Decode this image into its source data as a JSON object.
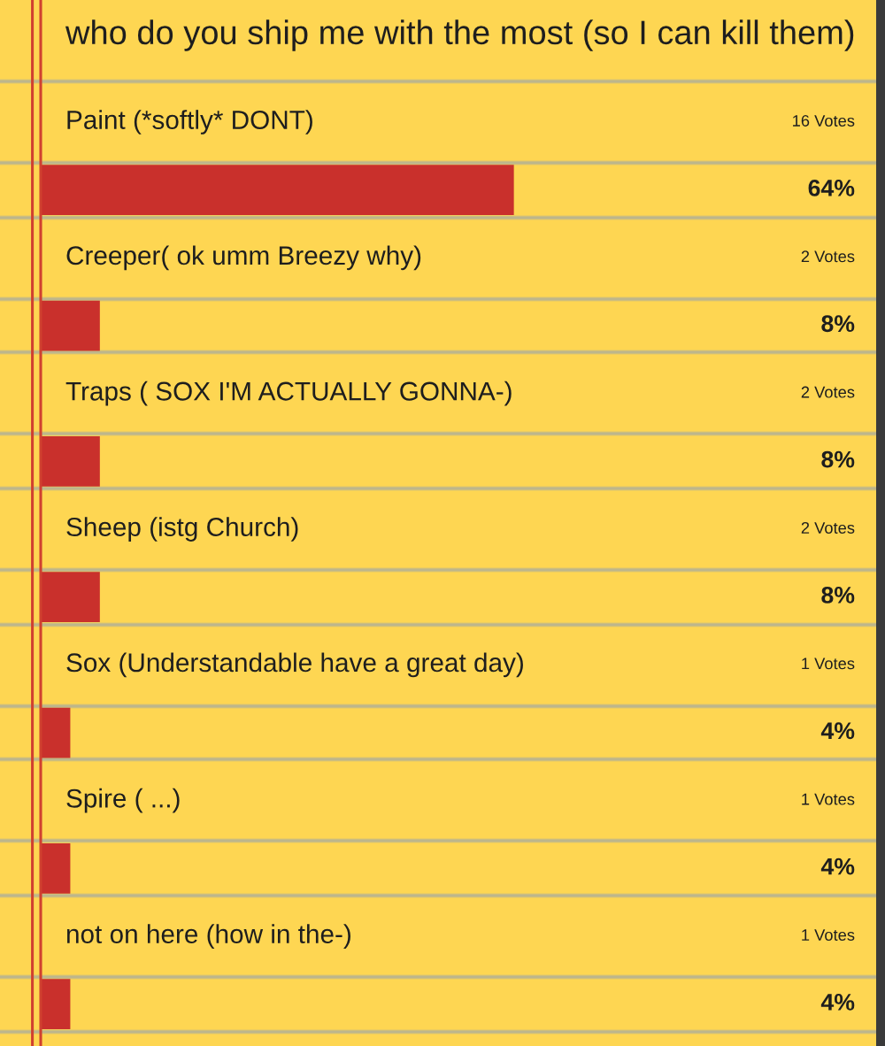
{
  "chart_data": {
    "type": "bar",
    "orientation": "horizontal",
    "title": "who do you ship me with the most (so I can kill them)",
    "categories": [
      "Paint (*softly* DONT)",
      "Creeper( ok umm Breezy why)",
      "Traps ( SOX I'M ACTUALLY GONNA-)",
      "Sheep (istg Church)",
      "Sox (Understandable have a great day)",
      "Spire ( ...)",
      "not on here (how in the-)"
    ],
    "values": [
      64,
      8,
      8,
      8,
      4,
      4,
      4
    ],
    "value_labels": [
      "64%",
      "8%",
      "8%",
      "8%",
      "4%",
      "4%",
      "4%"
    ],
    "annotations": [
      "16 Votes",
      "2 Votes",
      "2 Votes",
      "2 Votes",
      "1 Votes",
      "1 Votes",
      "1 Votes"
    ],
    "colors": [
      "#c9302c",
      "#c9302c",
      "#c9302c",
      "#c9302c",
      "#c9302c",
      "#c9302c",
      "#c9302c"
    ],
    "xlim": [
      0,
      113
    ],
    "tick_labels": "y"
  }
}
